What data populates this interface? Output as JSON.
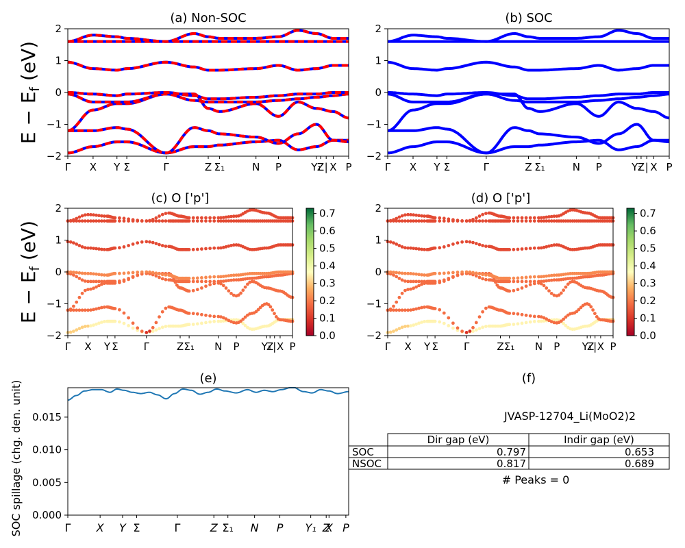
{
  "charts": {
    "a": {
      "title": "(a) Non-SOC",
      "ylabel": "E − E_f (eV)",
      "ylim": [
        -2,
        2
      ],
      "yticks": [
        "-2",
        "-1",
        "0",
        "1",
        "2"
      ],
      "kpath": [
        "Γ",
        "X",
        "Y",
        "Σ",
        "Γ",
        "Z",
        "Σ₁",
        "N",
        "P",
        "Y₁",
        "Z",
        "|",
        "X",
        "P"
      ]
    },
    "b": {
      "title": "(b) SOC",
      "ylim": [
        -2,
        2
      ],
      "yticks": [
        "-2",
        "-1",
        "0",
        "1",
        "2"
      ],
      "kpath": [
        "Γ",
        "X",
        "Y",
        "Σ",
        "Γ",
        "Z",
        "Σ₁",
        "N",
        "P",
        "Y₁",
        "Z",
        "|",
        "X",
        "P"
      ]
    },
    "c": {
      "title": "(c)  O ['p']",
      "ylabel": "E − E_f (eV)",
      "ylim": [
        -2,
        2
      ],
      "yticks": [
        "-2",
        "-1",
        "0",
        "1",
        "2"
      ],
      "kpath": [
        "Γ",
        "X",
        "Y",
        "Σ",
        "Γ",
        "Z",
        "Σ₁",
        "N",
        "P",
        "Y₁",
        "Z",
        "|",
        "X",
        "P"
      ],
      "colorbar_ticks": [
        "0.0",
        "0.1",
        "0.2",
        "0.3",
        "0.4",
        "0.5",
        "0.6",
        "0.7"
      ]
    },
    "d": {
      "title": "(d) O ['p']",
      "ylim": [
        -2,
        2
      ],
      "yticks": [
        "-2",
        "-1",
        "0",
        "1",
        "2"
      ],
      "kpath": [
        "Γ",
        "X",
        "Y",
        "Σ",
        "Γ",
        "Z",
        "Σ₁",
        "N",
        "P",
        "Y₁",
        "Z",
        "|",
        "X",
        "P"
      ],
      "colorbar_ticks": [
        "0.0",
        "0.1",
        "0.2",
        "0.3",
        "0.4",
        "0.5",
        "0.6",
        "0.7"
      ]
    },
    "e": {
      "title": "(e)",
      "ylabel": "SOC spillage (chg. den. unit)",
      "ylim": [
        0,
        0.0195
      ],
      "yticks": [
        "0.000",
        "0.005",
        "0.010",
        "0.015"
      ],
      "kpath": [
        "Γ",
        "X",
        "Y",
        "Σ",
        "Γ",
        "Z",
        "Σ₁",
        "N",
        "P",
        "Y₁",
        "Z",
        "X",
        "P"
      ]
    },
    "f": {
      "title": "(f)",
      "material": "JVASP-12704_Li(MoO2)2",
      "table": {
        "headers": [
          "",
          "Dir gap (eV)",
          "Indir gap (eV)"
        ],
        "rows": [
          {
            "label": "SOC",
            "dir": "0.797",
            "indir": "0.653"
          },
          {
            "label": "NSOC",
            "dir": "0.817",
            "indir": "0.689"
          }
        ]
      },
      "peaks": "# Peaks = 0"
    }
  },
  "chart_data": [
    {
      "type": "line",
      "panel": "a",
      "ylim": [
        -2,
        2
      ],
      "xticks_k": [
        0,
        0.09,
        0.175,
        0.21,
        0.35,
        0.5,
        0.54,
        0.67,
        0.75,
        0.885,
        0.9,
        0.92,
        0.945,
        1.0
      ],
      "bands": [
        [
          [
            0,
            -1.9
          ],
          [
            0.09,
            -1.7
          ],
          [
            0.175,
            -1.55
          ],
          [
            0.21,
            -1.55
          ],
          [
            0.35,
            -1.9
          ],
          [
            0.45,
            -1.7
          ],
          [
            0.5,
            -1.7
          ],
          [
            0.54,
            -1.65
          ],
          [
            0.67,
            -1.55
          ],
          [
            0.75,
            -1.5
          ],
          [
            0.82,
            -1.8
          ],
          [
            0.885,
            -1.7
          ],
          [
            0.945,
            -1.5
          ],
          [
            1.0,
            -1.5
          ]
        ],
        [
          [
            0,
            -1.2
          ],
          [
            0.09,
            -1.2
          ],
          [
            0.175,
            -1.1
          ],
          [
            0.21,
            -1.15
          ],
          [
            0.35,
            -1.9
          ],
          [
            0.45,
            -1.1
          ],
          [
            0.5,
            -1.2
          ],
          [
            0.54,
            -1.3
          ],
          [
            0.67,
            -1.4
          ],
          [
            0.75,
            -1.6
          ],
          [
            0.82,
            -1.3
          ],
          [
            0.885,
            -1.0
          ],
          [
            0.945,
            -1.5
          ],
          [
            1.0,
            -1.55
          ]
        ],
        [
          [
            0,
            -1.2
          ],
          [
            0.09,
            -0.55
          ],
          [
            0.175,
            -0.35
          ],
          [
            0.21,
            -0.35
          ],
          [
            0.35,
            -0.05
          ],
          [
            0.45,
            -0.05
          ],
          [
            0.5,
            -0.5
          ],
          [
            0.54,
            -0.6
          ],
          [
            0.67,
            -0.35
          ],
          [
            0.75,
            -0.75
          ],
          [
            0.82,
            -0.3
          ],
          [
            0.885,
            -0.5
          ],
          [
            0.945,
            -0.6
          ],
          [
            1.0,
            -0.8
          ]
        ],
        [
          [
            0,
            -0.05
          ],
          [
            0.09,
            -0.3
          ],
          [
            0.175,
            -0.3
          ],
          [
            0.21,
            -0.3
          ],
          [
            0.35,
            -0.05
          ],
          [
            0.45,
            -0.25
          ],
          [
            0.5,
            -0.3
          ],
          [
            0.54,
            -0.3
          ],
          [
            0.67,
            -0.3
          ],
          [
            0.75,
            -0.25
          ],
          [
            0.82,
            -0.2
          ],
          [
            0.885,
            -0.15
          ],
          [
            0.945,
            -0.1
          ],
          [
            1.0,
            -0.05
          ]
        ],
        [
          [
            0,
            0.0
          ],
          [
            0.09,
            -0.05
          ],
          [
            0.175,
            -0.1
          ],
          [
            0.21,
            -0.05
          ],
          [
            0.35,
            0.0
          ],
          [
            0.45,
            -0.1
          ],
          [
            0.5,
            -0.2
          ],
          [
            0.54,
            -0.2
          ],
          [
            0.67,
            -0.15
          ],
          [
            0.75,
            -0.1
          ],
          [
            0.82,
            -0.05
          ],
          [
            0.885,
            -0.05
          ],
          [
            0.945,
            0.0
          ],
          [
            1.0,
            0.0
          ]
        ],
        [
          [
            0,
            0.95
          ],
          [
            0.09,
            0.75
          ],
          [
            0.175,
            0.7
          ],
          [
            0.21,
            0.75
          ],
          [
            0.35,
            0.95
          ],
          [
            0.45,
            0.8
          ],
          [
            0.5,
            0.7
          ],
          [
            0.54,
            0.7
          ],
          [
            0.67,
            0.75
          ],
          [
            0.75,
            0.85
          ],
          [
            0.82,
            0.7
          ],
          [
            0.885,
            0.75
          ],
          [
            0.945,
            0.85
          ],
          [
            1.0,
            0.85
          ]
        ],
        [
          [
            0,
            1.6
          ],
          [
            0.09,
            1.6
          ],
          [
            0.175,
            1.6
          ],
          [
            0.21,
            1.6
          ],
          [
            0.35,
            1.6
          ],
          [
            0.45,
            1.6
          ],
          [
            0.5,
            1.6
          ],
          [
            0.54,
            1.6
          ],
          [
            0.67,
            1.6
          ],
          [
            0.75,
            1.6
          ],
          [
            0.82,
            1.6
          ],
          [
            0.885,
            1.6
          ],
          [
            0.945,
            1.6
          ],
          [
            1.0,
            1.6
          ]
        ],
        [
          [
            0,
            1.6
          ],
          [
            0.09,
            1.8
          ],
          [
            0.175,
            1.75
          ],
          [
            0.21,
            1.7
          ],
          [
            0.35,
            1.6
          ],
          [
            0.45,
            1.85
          ],
          [
            0.5,
            1.75
          ],
          [
            0.54,
            1.7
          ],
          [
            0.67,
            1.7
          ],
          [
            0.75,
            1.75
          ],
          [
            0.82,
            1.95
          ],
          [
            0.885,
            1.85
          ],
          [
            0.945,
            1.7
          ],
          [
            1.0,
            1.7
          ]
        ]
      ]
    },
    {
      "type": "line",
      "panel": "b",
      "ylim": [
        -2,
        2
      ],
      "note_same_bands_as": "a"
    },
    {
      "type": "scatter",
      "panel": "c",
      "ylim": [
        -2,
        2
      ],
      "colorbar_range": [
        0,
        0.73
      ],
      "note_same_bands_as": "a"
    },
    {
      "type": "scatter",
      "panel": "d",
      "ylim": [
        -2,
        2
      ],
      "colorbar_range": [
        0,
        0.73
      ],
      "note_same_bands_as": "a"
    },
    {
      "type": "line",
      "panel": "e",
      "ylim": [
        0,
        0.0195
      ],
      "x": [
        0,
        0.03,
        0.06,
        0.09,
        0.12,
        0.15,
        0.175,
        0.2,
        0.23,
        0.26,
        0.29,
        0.32,
        0.35,
        0.38,
        0.41,
        0.44,
        0.47,
        0.5,
        0.53,
        0.56,
        0.6,
        0.64,
        0.67,
        0.7,
        0.73,
        0.76,
        0.8,
        0.84,
        0.87,
        0.9,
        0.93,
        0.96,
        1.0
      ],
      "values": [
        0.0176,
        0.0183,
        0.019,
        0.0192,
        0.0192,
        0.0188,
        0.0193,
        0.0191,
        0.0188,
        0.0186,
        0.0188,
        0.0184,
        0.0178,
        0.0186,
        0.0193,
        0.0191,
        0.0185,
        0.0188,
        0.0193,
        0.019,
        0.0187,
        0.0192,
        0.0188,
        0.0191,
        0.0189,
        0.0192,
        0.0196,
        0.0189,
        0.0187,
        0.0192,
        0.019,
        0.0186,
        0.0189
      ]
    }
  ]
}
